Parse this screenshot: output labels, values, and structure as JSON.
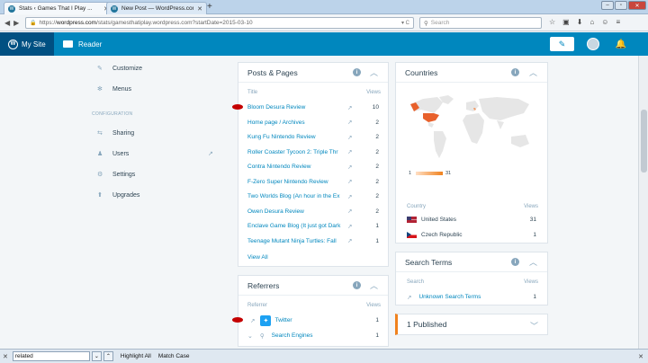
{
  "browser": {
    "tabs": [
      {
        "title": "Stats ‹ Games That I Play ...",
        "active": true
      },
      {
        "title": "New Post — WordPress.com",
        "active": false
      }
    ],
    "url_prefix": "https://",
    "url_domain": "wordpress.com",
    "url_path": "/stats/gamesthatiplay.wordpress.com?startDate=2015-03-10",
    "search_placeholder": "Search"
  },
  "masterbar": {
    "my_site": "My Site",
    "reader": "Reader"
  },
  "sidebar": {
    "items_top": [
      {
        "label": "Customize",
        "icon": "paintbrush-icon"
      },
      {
        "label": "Menus",
        "icon": "menu-icon"
      }
    ],
    "config_heading": "CONFIGURATION",
    "items_config": [
      {
        "label": "Sharing",
        "icon": "share-icon"
      },
      {
        "label": "Users",
        "icon": "user-icon"
      },
      {
        "label": "Settings",
        "icon": "cog-icon"
      },
      {
        "label": "Upgrades",
        "icon": "upgrade-icon"
      }
    ]
  },
  "posts_pages": {
    "title": "Posts & Pages",
    "col_title": "Title",
    "col_views": "Views",
    "rows": [
      {
        "title": "Bloom Desura Review",
        "views": "10"
      },
      {
        "title": "Home page / Archives",
        "views": "2"
      },
      {
        "title": "Kung Fu Nintendo Review",
        "views": "2"
      },
      {
        "title": "Roller Coaster Tycoon 2: Triple Thr",
        "views": "2"
      },
      {
        "title": "Contra Nintendo Review",
        "views": "2"
      },
      {
        "title": "F-Zero Super Nintendo Review",
        "views": "2"
      },
      {
        "title": "Two Worlds Blog (An hour in the Ex",
        "views": "2"
      },
      {
        "title": "Owen Desura Review",
        "views": "2"
      },
      {
        "title": "Enclave Game Blog (It just got Dark",
        "views": "1"
      },
      {
        "title": "Teenage Mutant Ninja Turtles: Fall",
        "views": "1"
      }
    ],
    "view_all": "View All"
  },
  "referrers": {
    "title": "Referrers",
    "col_title": "Referrer",
    "col_views": "Views",
    "rows": [
      {
        "label": "Twitter",
        "views": "1"
      },
      {
        "label": "Search Engines",
        "views": "1"
      }
    ]
  },
  "countries": {
    "title": "Countries",
    "legend_min": "1",
    "legend_max": "31",
    "col_title": "Country",
    "col_views": "Views",
    "rows": [
      {
        "name": "United States",
        "views": "31"
      },
      {
        "name": "Czech Republic",
        "views": "1"
      }
    ]
  },
  "search_terms": {
    "title": "Search Terms",
    "col_title": "Search",
    "col_views": "Views",
    "rows": [
      {
        "term": "Unknown Search Terms",
        "views": "1"
      }
    ]
  },
  "published": {
    "label": "1 Published"
  },
  "findbar": {
    "query": "related",
    "highlight_all": "Highlight All",
    "match_case": "Match Case"
  },
  "colors": {
    "masterbar": "#0087be",
    "mysite": "#005082",
    "link": "#0087be",
    "accent": "#f0821e",
    "map_highlight": "#e8612c"
  }
}
